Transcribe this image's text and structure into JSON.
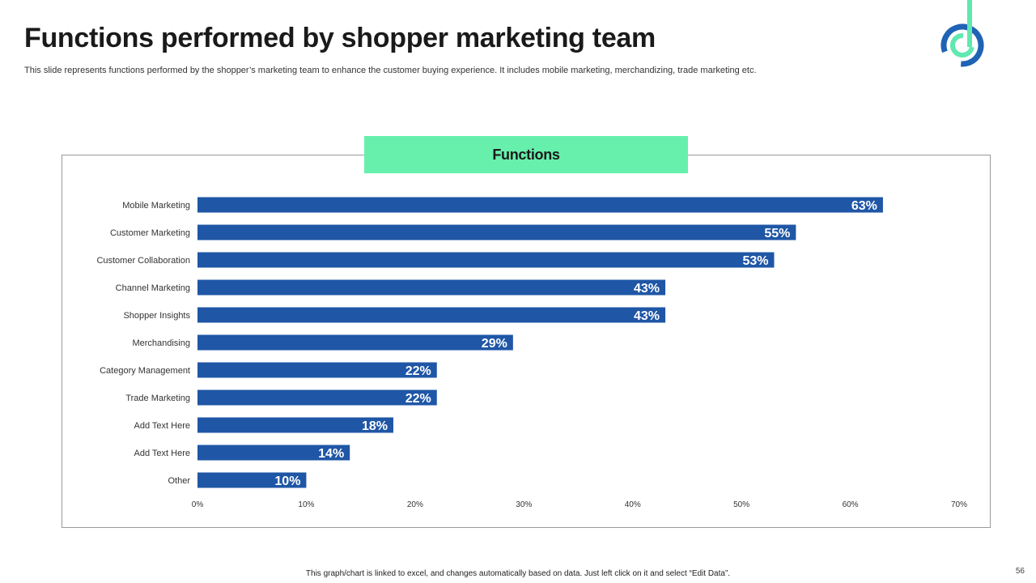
{
  "slide": {
    "title": "Functions performed by shopper marketing team",
    "subtitle": "This slide represents functions performed by the shopper’s marketing team to enhance the customer buying experience. It includes mobile marketing, merchandizing, trade marketing etc.",
    "footer_note": "This graph/chart is linked to excel, and changes automatically based on data. Just left click on it and select “Edit Data”.",
    "page_number": "56",
    "logo_icon": "brand-logo-icon"
  },
  "colors": {
    "bar": "#1f56a6",
    "heading_bg": "#66f0ac",
    "logo_blue": "#1f63b5",
    "logo_green": "#5fe8b0"
  },
  "chart_data": {
    "type": "bar",
    "orientation": "horizontal",
    "title": "Functions",
    "categories": [
      "Mobile Marketing",
      "Customer Marketing",
      "Customer Collaboration",
      "Channel Marketing",
      "Shopper Insights",
      "Merchandising",
      "Category Management",
      "Trade Marketing",
      "Add Text Here",
      "Add Text Here",
      "Other"
    ],
    "values": [
      63,
      55,
      53,
      43,
      43,
      29,
      22,
      22,
      18,
      14,
      10
    ],
    "value_labels": [
      "63%",
      "55%",
      "53%",
      "43%",
      "43%",
      "29%",
      "22%",
      "22%",
      "18%",
      "14%",
      "10%"
    ],
    "xlim": [
      0,
      70
    ],
    "x_ticks": [
      "0%",
      "10%",
      "20%",
      "30%",
      "40%",
      "50%",
      "60%",
      "70%"
    ],
    "xlabel": "",
    "ylabel": "",
    "grid": false
  }
}
